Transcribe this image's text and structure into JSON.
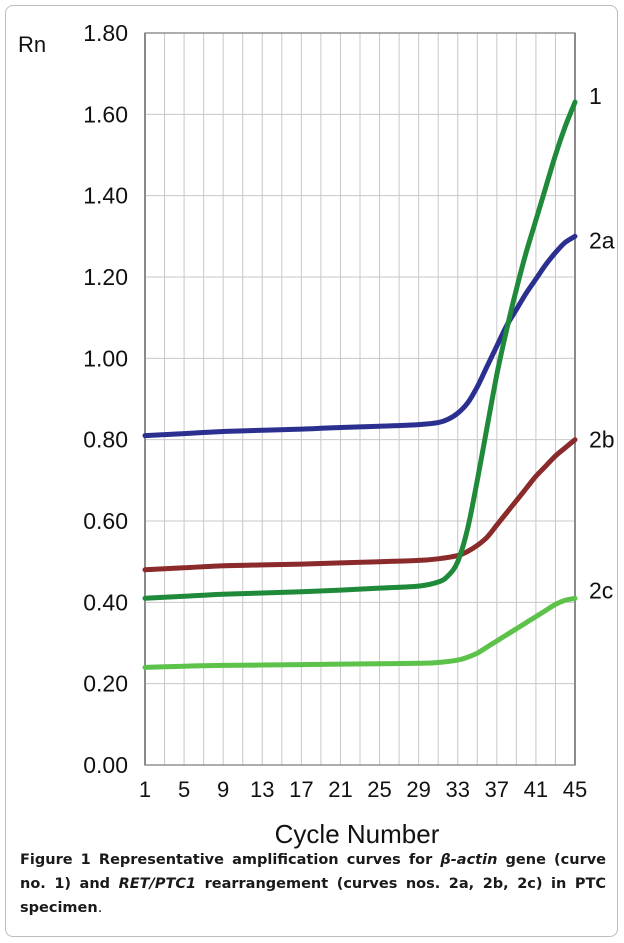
{
  "chart_data": {
    "type": "line",
    "ylabel": "Rn",
    "xlabel": "Cycle Number",
    "x_ticks": [
      "1",
      "5",
      "9",
      "13",
      "17",
      "21",
      "25",
      "29",
      "33",
      "37",
      "41",
      "45"
    ],
    "y_ticks": [
      "0.00",
      "0.20",
      "0.40",
      "0.60",
      "0.80",
      "1.00",
      "1.20",
      "1.40",
      "1.60",
      "1.80"
    ],
    "xlim": [
      1,
      45
    ],
    "ylim": [
      0,
      1.8
    ],
    "grid": true,
    "series": [
      {
        "name": "1",
        "color": "#1f8a3a",
        "x": [
          1,
          5,
          9,
          13,
          17,
          21,
          25,
          29,
          31,
          32,
          33,
          34,
          35,
          36,
          37,
          38,
          39,
          40,
          41,
          42,
          43,
          44,
          45
        ],
        "y": [
          0.41,
          0.415,
          0.42,
          0.423,
          0.426,
          0.43,
          0.435,
          0.44,
          0.45,
          0.465,
          0.5,
          0.58,
          0.7,
          0.83,
          0.96,
          1.07,
          1.17,
          1.26,
          1.34,
          1.42,
          1.5,
          1.57,
          1.63
        ]
      },
      {
        "name": "2a",
        "color": "#2b2f8f",
        "x": [
          1,
          5,
          9,
          13,
          17,
          21,
          25,
          29,
          31,
          32,
          33,
          34,
          35,
          36,
          37,
          38,
          39,
          40,
          41,
          42,
          43,
          44,
          45
        ],
        "y": [
          0.81,
          0.815,
          0.82,
          0.823,
          0.826,
          0.83,
          0.833,
          0.837,
          0.842,
          0.85,
          0.865,
          0.89,
          0.93,
          0.98,
          1.03,
          1.08,
          1.12,
          1.16,
          1.195,
          1.23,
          1.26,
          1.285,
          1.3
        ]
      },
      {
        "name": "2b",
        "color": "#8b2a2a",
        "x": [
          1,
          5,
          9,
          13,
          17,
          21,
          25,
          29,
          31,
          33,
          34,
          35,
          36,
          37,
          38,
          39,
          40,
          41,
          42,
          43,
          44,
          45
        ],
        "y": [
          0.48,
          0.485,
          0.49,
          0.492,
          0.494,
          0.497,
          0.5,
          0.503,
          0.507,
          0.515,
          0.525,
          0.54,
          0.56,
          0.59,
          0.62,
          0.65,
          0.68,
          0.71,
          0.735,
          0.76,
          0.78,
          0.8
        ]
      },
      {
        "name": "2c",
        "color": "#5cc24a",
        "x": [
          1,
          5,
          9,
          13,
          17,
          21,
          25,
          29,
          31,
          33,
          34,
          35,
          36,
          37,
          38,
          39,
          40,
          41,
          42,
          43,
          44,
          45
        ],
        "y": [
          0.24,
          0.243,
          0.245,
          0.246,
          0.247,
          0.248,
          0.249,
          0.25,
          0.252,
          0.258,
          0.265,
          0.275,
          0.29,
          0.305,
          0.32,
          0.335,
          0.35,
          0.365,
          0.38,
          0.395,
          0.405,
          0.41
        ]
      }
    ]
  },
  "caption": {
    "label": "Figure 1",
    "part1": " Representative amplification curves for ",
    "gene1": "β-actin",
    "part2": " gene (curve no. 1) and ",
    "gene2": "RET/PTC1",
    "part3": " rearrangement (curves nos. 2a, 2b, 2c) in PTC specimen",
    "end": "."
  }
}
